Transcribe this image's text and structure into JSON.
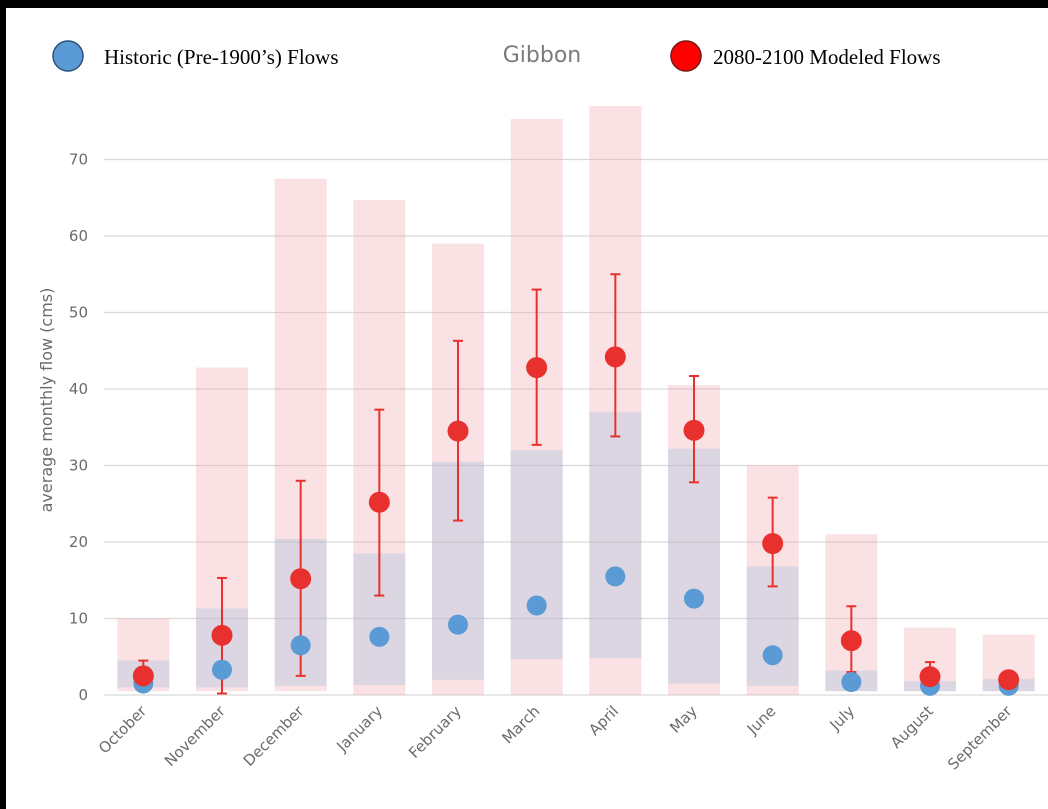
{
  "chart_data": {
    "type": "scatter",
    "title": "Gibbon",
    "ylabel": "average monthly flow (cms)",
    "xlabel": "",
    "ylim": [
      0,
      78
    ],
    "yticks": [
      0,
      10,
      20,
      30,
      40,
      50,
      60,
      70
    ],
    "grid": true,
    "legend_position": "top",
    "categories": [
      "October",
      "November",
      "December",
      "January",
      "February",
      "March",
      "April",
      "May",
      "June",
      "July",
      "August",
      "September"
    ],
    "series": [
      {
        "name": "Historic (Pre-1900’s) Flows",
        "color": "#5b9bd5",
        "marker": "circle",
        "values": [
          1.5,
          3.3,
          6.5,
          7.6,
          9.2,
          11.7,
          15.5,
          12.6,
          5.2,
          1.7,
          1.2,
          1.2
        ],
        "range_low": [
          1.0,
          1.0,
          1.2,
          1.3,
          2.0,
          4.7,
          4.8,
          1.5,
          1.2,
          0.5,
          0.5,
          0.5
        ],
        "range_high": [
          4.5,
          11.3,
          20.4,
          18.5,
          30.5,
          32.0,
          37.0,
          32.2,
          16.8,
          3.2,
          1.8,
          2.1
        ]
      },
      {
        "name": "2080-2100 Modeled Flows",
        "color": "#e8312f",
        "marker": "circle",
        "values": [
          2.5,
          7.8,
          15.2,
          25.2,
          34.5,
          42.8,
          44.2,
          34.6,
          19.8,
          7.1,
          2.4,
          2.0
        ],
        "error_low": [
          1.2,
          0.2,
          2.5,
          13.0,
          22.8,
          32.7,
          33.8,
          27.8,
          14.2,
          3.0,
          1.5,
          1.5
        ],
        "error_high": [
          4.5,
          15.3,
          28.0,
          37.3,
          46.3,
          53.0,
          55.0,
          41.7,
          25.8,
          11.6,
          4.3,
          3.0
        ],
        "range_low": [
          0.5,
          0.5,
          0.5,
          0.0,
          0.0,
          0.0,
          0.0,
          0.0,
          0.0,
          0.5,
          0.5,
          0.5
        ],
        "range_high": [
          10.0,
          42.8,
          67.5,
          64.7,
          59.0,
          75.3,
          77.0,
          40.5,
          30.0,
          21.0,
          8.8,
          7.9
        ]
      }
    ]
  }
}
